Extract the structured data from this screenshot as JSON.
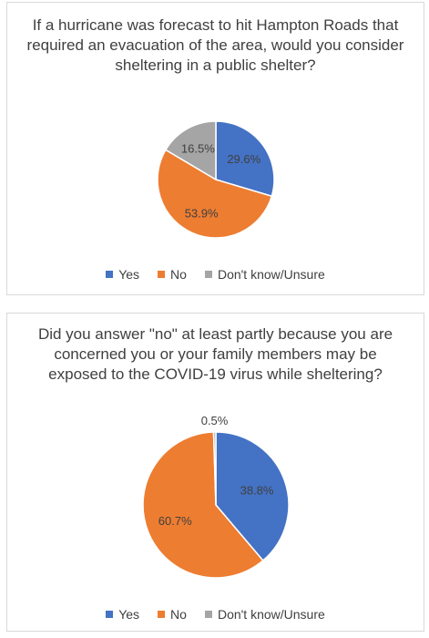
{
  "chart_data": [
    {
      "type": "pie",
      "title": "If a hurricane was forecast to hit Hampton Roads that required an evacuation of the area, would you consider sheltering in a public shelter?",
      "categories": [
        "Yes",
        "No",
        "Don't know/Unsure"
      ],
      "values": [
        29.6,
        53.9,
        16.5
      ],
      "labels": [
        "29.6%",
        "53.9%",
        "16.5%"
      ],
      "colors": [
        "#4472c4",
        "#ed7d31",
        "#a5a5a5"
      ],
      "legend_position": "bottom"
    },
    {
      "type": "pie",
      "title": "Did you answer \"no\" at least partly because you are concerned you or your family members may be exposed to the COVID-19 virus while sheltering?",
      "categories": [
        "Yes",
        "No",
        "Don't know/Unsure"
      ],
      "values": [
        38.8,
        60.7,
        0.5
      ],
      "labels": [
        "38.8%",
        "60.7%",
        "0.5%"
      ],
      "colors": [
        "#4472c4",
        "#ed7d31",
        "#a5a5a5"
      ],
      "legend_position": "bottom"
    }
  ]
}
